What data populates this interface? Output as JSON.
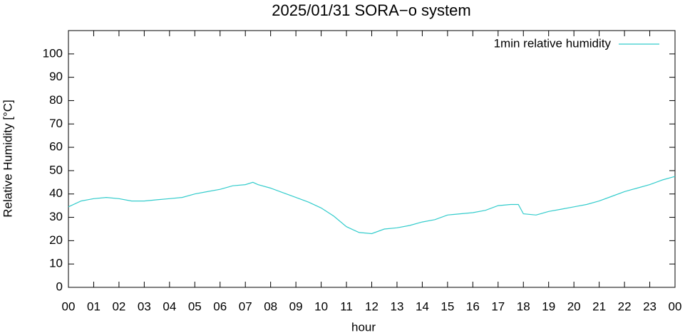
{
  "chart_data": {
    "type": "line",
    "title": "2025/01/31 SORA−o system",
    "x_label": "hour",
    "y_label": "Relative Humidity [°C]",
    "x": [
      0,
      0.5,
      1,
      1.5,
      2,
      2.5,
      3,
      3.5,
      4,
      4.5,
      5,
      5.5,
      6,
      6.5,
      7,
      7.3,
      7.5,
      8,
      8.5,
      9,
      9.5,
      10,
      10.5,
      11,
      11.5,
      12,
      12.5,
      13,
      13.5,
      14,
      14.5,
      15,
      15.5,
      16,
      16.5,
      17,
      17.5,
      17.8,
      18,
      18.5,
      19,
      19.5,
      20,
      20.5,
      21,
      21.5,
      22,
      22.5,
      23,
      23.5,
      24
    ],
    "series": [
      {
        "name": "1min relative humidity",
        "color": "#33cccc",
        "values": [
          34.5,
          37,
          38,
          38.5,
          38,
          37,
          37,
          37.5,
          38,
          38.5,
          40,
          41,
          42,
          43.5,
          44,
          45,
          44,
          42.5,
          40.5,
          38.5,
          36.5,
          34,
          30.5,
          26,
          23.5,
          23,
          25,
          25.5,
          26.5,
          28,
          29,
          31,
          31.5,
          32,
          33,
          35,
          35.5,
          35.5,
          31.5,
          31,
          32.5,
          33.5,
          34.5,
          35.5,
          37,
          39,
          41,
          42.5,
          44,
          46,
          47.5
        ]
      }
    ],
    "xlim": [
      0,
      24
    ],
    "xticks": [
      {
        "value": 0,
        "label": "00"
      },
      {
        "value": 1,
        "label": "01"
      },
      {
        "value": 2,
        "label": "02"
      },
      {
        "value": 3,
        "label": "03"
      },
      {
        "value": 4,
        "label": "04"
      },
      {
        "value": 5,
        "label": "05"
      },
      {
        "value": 6,
        "label": "06"
      },
      {
        "value": 7,
        "label": "07"
      },
      {
        "value": 8,
        "label": "08"
      },
      {
        "value": 9,
        "label": "09"
      },
      {
        "value": 10,
        "label": "10"
      },
      {
        "value": 11,
        "label": "11"
      },
      {
        "value": 12,
        "label": "12"
      },
      {
        "value": 13,
        "label": "13"
      },
      {
        "value": 14,
        "label": "14"
      },
      {
        "value": 15,
        "label": "15"
      },
      {
        "value": 16,
        "label": "16"
      },
      {
        "value": 17,
        "label": "17"
      },
      {
        "value": 18,
        "label": "18"
      },
      {
        "value": 19,
        "label": "19"
      },
      {
        "value": 20,
        "label": "20"
      },
      {
        "value": 21,
        "label": "21"
      },
      {
        "value": 22,
        "label": "22"
      },
      {
        "value": 23,
        "label": "23"
      },
      {
        "value": 24,
        "label": "00"
      }
    ],
    "ylim": [
      0,
      110
    ],
    "yticks": [
      0,
      10,
      20,
      30,
      40,
      50,
      60,
      70,
      80,
      90,
      100
    ],
    "grid": false,
    "legend": "top-right"
  }
}
